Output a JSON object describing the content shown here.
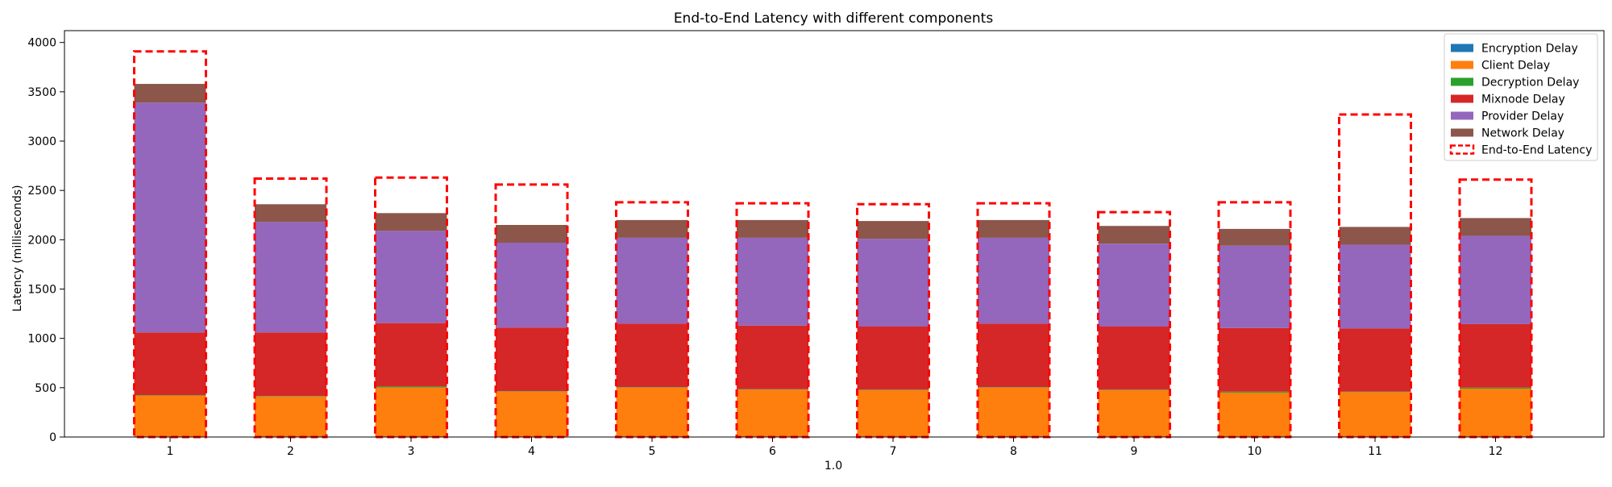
{
  "chart_data": {
    "type": "bar",
    "stacked": true,
    "title": "End-to-End Latency with different components",
    "xlabel": "1.0",
    "ylabel": "Latency (milliseconds)",
    "ylim": [
      0,
      4120
    ],
    "yticks": [
      0,
      500,
      1000,
      1500,
      2000,
      2500,
      3000,
      3500,
      4000
    ],
    "grid": false,
    "legend_position": "top-right",
    "categories": [
      "1",
      "2",
      "3",
      "4",
      "5",
      "6",
      "7",
      "8",
      "9",
      "10",
      "11",
      "12"
    ],
    "series": [
      {
        "name": "Encryption Delay",
        "color": "#1f77b4",
        "values": [
          2,
          2,
          2,
          2,
          2,
          2,
          2,
          2,
          2,
          2,
          2,
          2
        ]
      },
      {
        "name": "Client Delay",
        "color": "#ff7f0e",
        "values": [
          418,
          408,
          500,
          458,
          498,
          478,
          473,
          498,
          473,
          448,
          453,
          488
        ]
      },
      {
        "name": "Decryption Delay",
        "color": "#2ca02c",
        "values": [
          5,
          5,
          10,
          5,
          5,
          5,
          5,
          5,
          5,
          10,
          5,
          10
        ]
      },
      {
        "name": "Mixnode Delay",
        "color": "#d62728",
        "values": [
          635,
          645,
          643,
          645,
          645,
          645,
          640,
          645,
          640,
          645,
          640,
          645
        ]
      },
      {
        "name": "Provider Delay",
        "color": "#9467bd",
        "values": [
          2330,
          1120,
          935,
          860,
          870,
          890,
          890,
          870,
          840,
          835,
          850,
          895
        ]
      },
      {
        "name": "Network Delay",
        "color": "#8c564b",
        "values": [
          190,
          180,
          180,
          180,
          180,
          180,
          180,
          180,
          180,
          170,
          180,
          180
        ]
      }
    ],
    "end_to_end": {
      "name": "End-to-End Latency",
      "color": "#ff0000",
      "values": [
        3910,
        2620,
        2630,
        2560,
        2380,
        2370,
        2360,
        2370,
        2280,
        2380,
        3270,
        2610
      ]
    }
  }
}
